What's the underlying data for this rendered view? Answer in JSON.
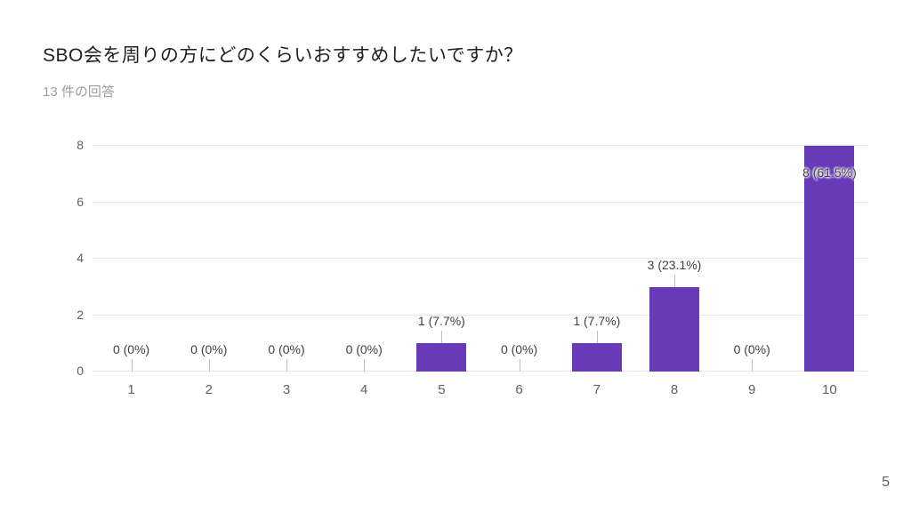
{
  "page": {
    "title": "SBO会を周りの方にどのくらいおすすめしたいですか？",
    "subtitle": "13 件の回答",
    "page_number": "5"
  },
  "colors": {
    "bar": "#673ab7",
    "grid": "#e8e8e8",
    "axis_text": "#616161",
    "annotation_text": "#424242",
    "title_text": "#212121",
    "subtitle_text": "#9e9e9e"
  },
  "chart_data": {
    "type": "bar",
    "title": "SBO会を周りの方にどのくらいおすすめしたいですか？",
    "subtitle": "13 件の回答",
    "categories": [
      "1",
      "2",
      "3",
      "4",
      "5",
      "6",
      "7",
      "8",
      "9",
      "10"
    ],
    "values": [
      0,
      0,
      0,
      0,
      1,
      0,
      1,
      3,
      0,
      8
    ],
    "labels": [
      "0 (0%)",
      "0 (0%)",
      "0 (0%)",
      "0 (0%)",
      "1 (7.7%)",
      "0 (0%)",
      "1 (7.7%)",
      "3 (23.1%)",
      "0 (0%)",
      "8 (61.5%)"
    ],
    "total_responses": 13,
    "xlabel": "",
    "ylabel": "",
    "ylim": [
      0,
      8
    ],
    "yticks": [
      0,
      2,
      4,
      6,
      8
    ],
    "grid": true,
    "legend": "none"
  }
}
